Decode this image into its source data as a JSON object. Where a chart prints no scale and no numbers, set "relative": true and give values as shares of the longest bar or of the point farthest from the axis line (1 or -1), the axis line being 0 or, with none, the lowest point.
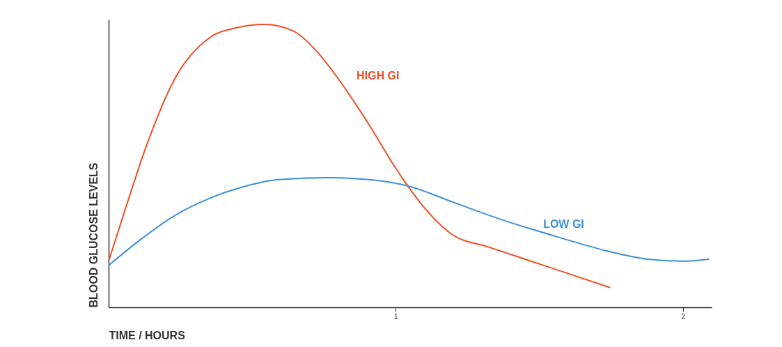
{
  "chart_data": {
    "type": "line",
    "relative": true,
    "xlabel": "TIME / HOURS",
    "ylabel": "BLOOD GLUCOSE LEVELS",
    "xlim": [
      0,
      2.1
    ],
    "xticks": [
      1,
      2
    ],
    "grid": false,
    "legend": false,
    "marker": "none",
    "line_style": "solid",
    "series": [
      {
        "name": "HIGH GI",
        "color": "#f04e23",
        "x": [
          0,
          0.058,
          0.131,
          0.228,
          0.349,
          0.446,
          0.543,
          0.64,
          0.725,
          0.81,
          0.907,
          1.004,
          1.101,
          1.198,
          1.32,
          1.465,
          1.61,
          1.745
        ],
        "values": [
          0.163,
          0.347,
          0.569,
          0.803,
          0.951,
          0.988,
          1.0,
          0.978,
          0.904,
          0.793,
          0.645,
          0.485,
          0.35,
          0.256,
          0.214,
          0.165,
          0.116,
          0.07
        ]
      },
      {
        "name": "LOW GI",
        "color": "#3a8fd9",
        "x": [
          0,
          0.107,
          0.228,
          0.349,
          0.47,
          0.591,
          0.761,
          0.907,
          1.052,
          1.198,
          1.368,
          1.562,
          1.732,
          1.877,
          1.998,
          2.09
        ],
        "values": [
          0.148,
          0.236,
          0.323,
          0.384,
          0.426,
          0.451,
          0.458,
          0.451,
          0.426,
          0.372,
          0.31,
          0.249,
          0.2,
          0.17,
          0.163,
          0.17
        ]
      }
    ]
  }
}
